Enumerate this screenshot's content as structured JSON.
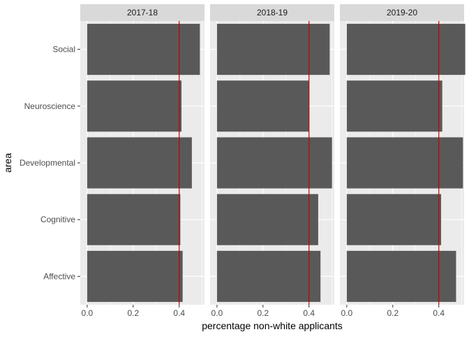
{
  "chart_data": {
    "type": "bar",
    "orientation": "horizontal",
    "xlabel": "percentage non-white applicants",
    "ylabel": "area",
    "xlim": [
      -0.03,
      0.51
    ],
    "x_ticks": [
      "0.0",
      "0.2",
      "0.4"
    ],
    "x_tick_values": [
      0.0,
      0.2,
      0.4
    ],
    "categories": [
      "Social",
      "Neuroscience",
      "Developmental",
      "Cognitive",
      "Affective"
    ],
    "reference_line": {
      "x": 0.4,
      "color": "#c00000"
    },
    "grid": true,
    "bar_color": "#595959",
    "panel_background": "#ebebeb",
    "strip_background": "#d9d9d9",
    "facets": [
      {
        "label": "2017-18",
        "values": [
          0.49,
          0.41,
          0.455,
          0.405,
          0.415
        ]
      },
      {
        "label": "2018-19",
        "values": [
          0.49,
          0.4,
          0.5,
          0.44,
          0.45
        ]
      },
      {
        "label": "2019-20",
        "values": [
          0.515,
          0.415,
          0.505,
          0.41,
          0.475
        ]
      }
    ]
  }
}
